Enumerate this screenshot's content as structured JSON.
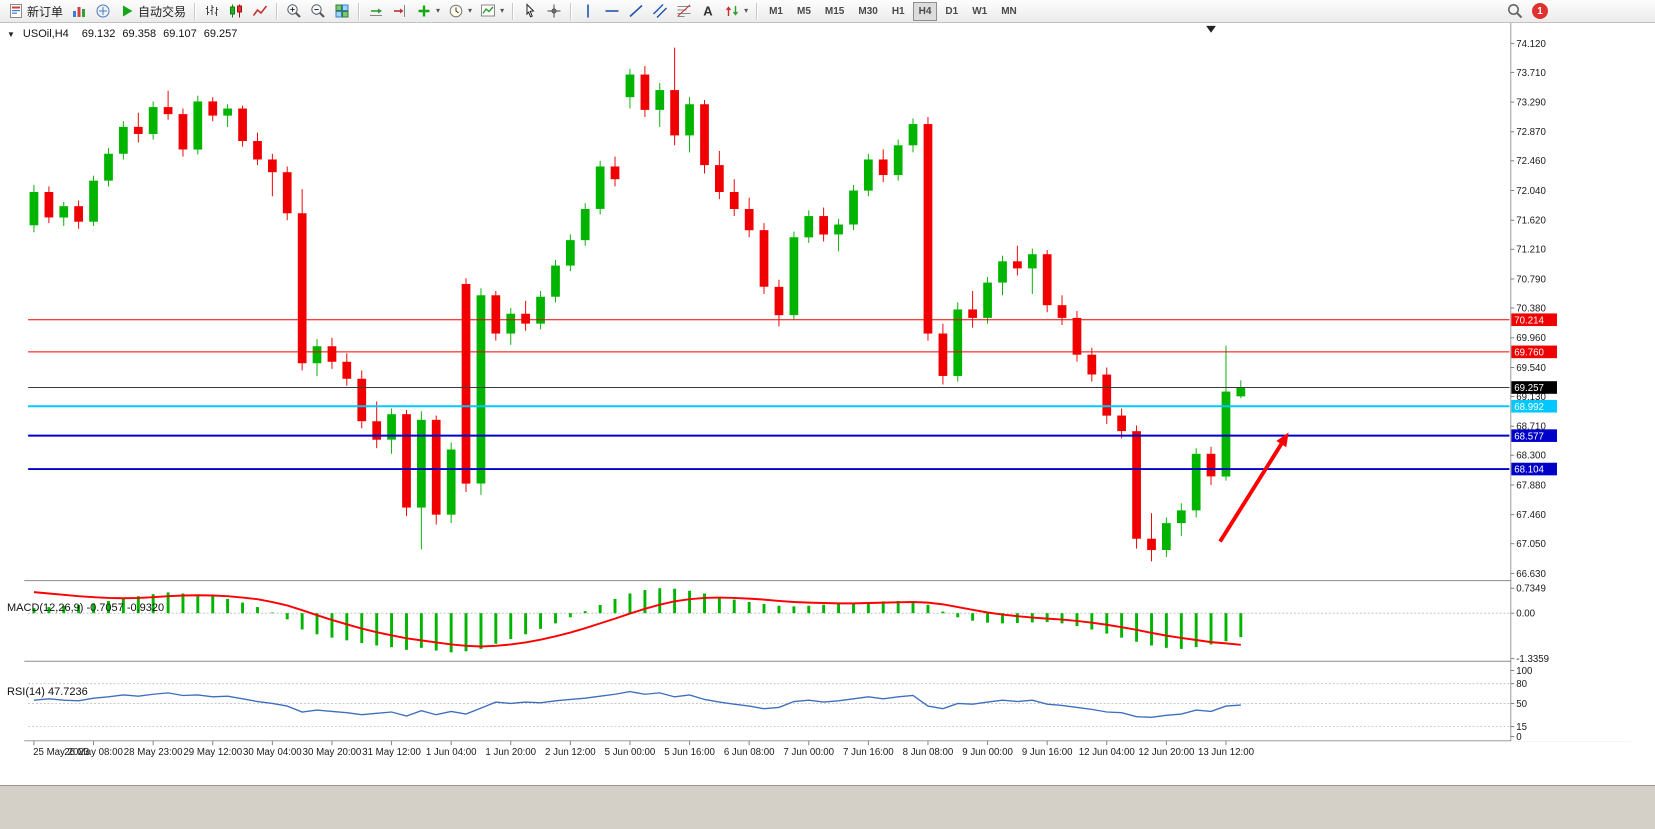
{
  "toolbar": {
    "new_order_label": "新订单",
    "autotrading_label": "自动交易",
    "timeframes": [
      "M1",
      "M5",
      "M15",
      "M30",
      "H1",
      "H4",
      "D1",
      "W1",
      "MN"
    ],
    "active_timeframe": "H4",
    "notification_badge": "1"
  },
  "chart_header": {
    "symbol": "USOil,H4",
    "open": "69.132",
    "high": "69.358",
    "low": "69.107",
    "close": "69.257"
  },
  "indicator_headers": {
    "macd": "MACD(12,26,9) -0.7057 -0.9320",
    "rsi": "RSI(14) 47.7236"
  },
  "chart_data": [
    {
      "type": "candlestick",
      "symbol": "USOil",
      "timeframe": "H4",
      "ohlc_readout": [
        69.132,
        69.358,
        69.107,
        69.257
      ],
      "colors": {
        "up": "#00B400",
        "down": "#F00000"
      },
      "y_ticks": [
        "74.120",
        "73.710",
        "73.290",
        "72.870",
        "72.460",
        "72.040",
        "71.620",
        "71.210",
        "70.790",
        "70.380",
        "69.960",
        "69.540",
        "69.130",
        "68.710",
        "68.300",
        "67.880",
        "67.460",
        "67.050",
        "66.630"
      ],
      "x_labels": [
        "25 May 2023",
        "26 May 08:00",
        "28 May 23:00",
        "29 May 12:00",
        "30 May 04:00",
        "30 May 20:00",
        "31 May 12:00",
        "1 Jun 04:00",
        "1 Jun 20:00",
        "2 Jun 12:00",
        "5 Jun 00:00",
        "5 Jun 16:00",
        "6 Jun 08:00",
        "7 Jun 00:00",
        "7 Jun 16:00",
        "8 Jun 08:00",
        "9 Jun 00:00",
        "9 Jun 16:00",
        "12 Jun 04:00",
        "12 Jun 20:00",
        "13 Jun 12:00"
      ],
      "x_label_step": 4,
      "candles": [
        [
          71.55,
          72.12,
          71.45,
          72.02
        ],
        [
          72.02,
          72.1,
          71.58,
          71.66
        ],
        [
          71.66,
          71.88,
          71.54,
          71.82
        ],
        [
          71.82,
          71.9,
          71.5,
          71.6
        ],
        [
          71.6,
          72.25,
          71.54,
          72.18
        ],
        [
          72.18,
          72.64,
          72.1,
          72.56
        ],
        [
          72.56,
          73.02,
          72.48,
          72.94
        ],
        [
          72.94,
          73.14,
          72.72,
          72.84
        ],
        [
          72.84,
          73.3,
          72.76,
          73.22
        ],
        [
          73.22,
          73.45,
          73.04,
          73.12
        ],
        [
          73.12,
          73.2,
          72.52,
          72.62
        ],
        [
          72.62,
          73.38,
          72.55,
          73.3
        ],
        [
          73.3,
          73.36,
          73.02,
          73.1
        ],
        [
          73.1,
          73.26,
          72.94,
          73.2
        ],
        [
          73.2,
          73.24,
          72.66,
          72.74
        ],
        [
          72.74,
          72.86,
          72.4,
          72.48
        ],
        [
          72.48,
          72.56,
          71.96,
          72.3
        ],
        [
          72.3,
          72.38,
          71.62,
          71.72
        ],
        [
          71.72,
          72.06,
          69.5,
          69.6
        ],
        [
          69.6,
          69.94,
          69.42,
          69.84
        ],
        [
          69.84,
          69.96,
          69.52,
          69.62
        ],
        [
          69.62,
          69.74,
          69.28,
          69.38
        ],
        [
          69.38,
          69.5,
          68.68,
          68.78
        ],
        [
          68.78,
          69.06,
          68.4,
          68.52
        ],
        [
          68.52,
          68.96,
          68.32,
          68.88
        ],
        [
          68.88,
          68.94,
          67.44,
          67.56
        ],
        [
          67.56,
          68.92,
          66.97,
          68.8
        ],
        [
          68.8,
          68.86,
          67.32,
          67.46
        ],
        [
          67.46,
          68.48,
          67.34,
          68.38
        ],
        [
          70.72,
          70.8,
          67.78,
          67.9
        ],
        [
          67.9,
          70.66,
          67.74,
          70.56
        ],
        [
          70.56,
          70.62,
          69.92,
          70.02
        ],
        [
          70.02,
          70.38,
          69.86,
          70.3
        ],
        [
          70.3,
          70.48,
          70.06,
          70.16
        ],
        [
          70.16,
          70.62,
          70.08,
          70.54
        ],
        [
          70.54,
          71.06,
          70.46,
          70.98
        ],
        [
          70.98,
          71.42,
          70.9,
          71.34
        ],
        [
          71.34,
          71.86,
          71.26,
          71.78
        ],
        [
          71.78,
          72.46,
          71.7,
          72.38
        ],
        [
          72.38,
          72.52,
          72.1,
          72.2
        ],
        [
          73.36,
          73.76,
          73.2,
          73.68
        ],
        [
          73.68,
          73.8,
          73.08,
          73.18
        ],
        [
          73.18,
          73.56,
          72.94,
          73.46
        ],
        [
          73.46,
          74.06,
          72.68,
          72.82
        ],
        [
          72.82,
          73.36,
          72.58,
          73.26
        ],
        [
          73.26,
          73.32,
          72.28,
          72.4
        ],
        [
          72.4,
          72.6,
          71.92,
          72.02
        ],
        [
          72.02,
          72.2,
          71.68,
          71.78
        ],
        [
          71.78,
          71.94,
          71.38,
          71.48
        ],
        [
          71.48,
          71.58,
          70.58,
          70.68
        ],
        [
          70.68,
          70.78,
          70.12,
          70.28
        ],
        [
          70.28,
          71.46,
          70.22,
          71.38
        ],
        [
          71.38,
          71.76,
          71.3,
          71.68
        ],
        [
          71.68,
          71.8,
          71.32,
          71.42
        ],
        [
          71.42,
          71.64,
          71.18,
          71.56
        ],
        [
          71.56,
          72.12,
          71.48,
          72.04
        ],
        [
          72.04,
          72.56,
          71.96,
          72.48
        ],
        [
          72.48,
          72.62,
          72.16,
          72.26
        ],
        [
          72.26,
          72.76,
          72.18,
          72.68
        ],
        [
          72.68,
          73.06,
          72.58,
          72.98
        ],
        [
          72.98,
          73.08,
          69.92,
          70.02
        ],
        [
          70.02,
          70.16,
          69.3,
          69.42
        ],
        [
          69.42,
          70.46,
          69.34,
          70.36
        ],
        [
          70.36,
          70.62,
          70.1,
          70.24
        ],
        [
          70.24,
          70.82,
          70.16,
          70.74
        ],
        [
          70.74,
          71.12,
          70.56,
          71.04
        ],
        [
          71.04,
          71.26,
          70.84,
          70.94
        ],
        [
          70.94,
          71.22,
          70.58,
          71.14
        ],
        [
          71.14,
          71.2,
          70.32,
          70.42
        ],
        [
          70.42,
          70.56,
          70.14,
          70.24
        ],
        [
          70.24,
          70.34,
          69.62,
          69.72
        ],
        [
          69.72,
          69.82,
          69.34,
          69.44
        ],
        [
          69.44,
          69.54,
          68.74,
          68.86
        ],
        [
          68.86,
          68.96,
          68.54,
          68.64
        ],
        [
          68.64,
          68.72,
          66.98,
          67.12
        ],
        [
          67.12,
          67.48,
          66.8,
          66.96
        ],
        [
          66.96,
          67.42,
          66.86,
          67.34
        ],
        [
          67.34,
          67.62,
          67.16,
          67.52
        ],
        [
          67.52,
          68.4,
          67.42,
          68.32
        ],
        [
          68.32,
          68.42,
          67.88,
          68.0
        ],
        [
          68.0,
          69.85,
          67.94,
          69.2
        ],
        [
          69.132,
          69.358,
          69.107,
          69.257
        ]
      ],
      "hlines": [
        {
          "price": 70.214,
          "label": "70.214",
          "color": "#F00000",
          "width": 1
        },
        {
          "price": 69.76,
          "label": "69.760",
          "color": "#F00000",
          "width": 1
        },
        {
          "price": 69.257,
          "label": "69.257",
          "color": "#3a3a3a",
          "width": 1,
          "label_bg": "#000000"
        },
        {
          "price": 68.992,
          "label": "68.992",
          "color": "#00C8FF",
          "width": 2
        },
        {
          "price": 68.577,
          "label": "68.577",
          "color": "#0000C8",
          "width": 2
        },
        {
          "price": 68.104,
          "label": "68.104",
          "color": "#0000C8",
          "width": 2
        }
      ],
      "arrow": {
        "from_index": 79.6,
        "from_price": 67.08,
        "to_index": 84.2,
        "to_price": 68.62,
        "color": "#FF0000"
      },
      "marker_index": 79
    },
    {
      "type": "bar",
      "name": "MACD",
      "label": "MACD(12,26,9) -0.7057 -0.9320",
      "y_ticks": [
        "0.7349",
        "0.00",
        "-1.3359"
      ],
      "colors": {
        "histogram": "#00B400",
        "signal": "#FF0000"
      },
      "histogram": [
        0.15,
        0.18,
        0.21,
        0.24,
        0.29,
        0.36,
        0.44,
        0.5,
        0.56,
        0.61,
        0.58,
        0.55,
        0.5,
        0.42,
        0.31,
        0.18,
        0.02,
        -0.18,
        -0.48,
        -0.62,
        -0.72,
        -0.8,
        -0.88,
        -0.95,
        -1.0,
        -1.08,
        -1.02,
        -1.1,
        -1.15,
        -1.12,
        -1.05,
        -0.9,
        -0.76,
        -0.62,
        -0.46,
        -0.3,
        -0.12,
        0.06,
        0.24,
        0.42,
        0.58,
        0.68,
        0.7349,
        0.72,
        0.66,
        0.58,
        0.48,
        0.4,
        0.33,
        0.27,
        0.22,
        0.2,
        0.22,
        0.25,
        0.28,
        0.31,
        0.33,
        0.35,
        0.36,
        0.35,
        0.25,
        0.05,
        -0.12,
        -0.22,
        -0.28,
        -0.3,
        -0.29,
        -0.27,
        -0.26,
        -0.3,
        -0.38,
        -0.48,
        -0.6,
        -0.72,
        -0.84,
        -0.95,
        -1.02,
        -1.05,
        -1.0,
        -0.92,
        -0.83,
        -0.7057
      ],
      "signal": [
        0.62,
        0.58,
        0.54,
        0.5,
        0.47,
        0.45,
        0.44,
        0.45,
        0.47,
        0.5,
        0.52,
        0.53,
        0.52,
        0.5,
        0.46,
        0.41,
        0.33,
        0.23,
        0.09,
        -0.06,
        -0.2,
        -0.33,
        -0.45,
        -0.56,
        -0.65,
        -0.74,
        -0.8,
        -0.86,
        -0.92,
        -0.96,
        -0.98,
        -0.96,
        -0.92,
        -0.86,
        -0.78,
        -0.68,
        -0.57,
        -0.44,
        -0.3,
        -0.16,
        -0.01,
        0.13,
        0.25,
        0.35,
        0.41,
        0.45,
        0.46,
        0.45,
        0.43,
        0.4,
        0.36,
        0.33,
        0.31,
        0.3,
        0.29,
        0.29,
        0.3,
        0.31,
        0.32,
        0.33,
        0.31,
        0.26,
        0.18,
        0.1,
        0.02,
        -0.04,
        -0.09,
        -0.13,
        -0.16,
        -0.19,
        -0.23,
        -0.28,
        -0.34,
        -0.41,
        -0.49,
        -0.58,
        -0.66,
        -0.73,
        -0.79,
        -0.85,
        -0.89,
        -0.932
      ]
    },
    {
      "type": "line",
      "name": "RSI",
      "label": "RSI(14) 47.7236",
      "color": "#3E6FBE",
      "y_ticks": [
        "100",
        "80",
        "50",
        "15",
        "0"
      ],
      "levels": [
        80,
        50,
        15
      ],
      "values": [
        55,
        57,
        55,
        54,
        58,
        60,
        63,
        61,
        64,
        66,
        62,
        63,
        60,
        61,
        57,
        53,
        50,
        46,
        37,
        40,
        38,
        36,
        33,
        35,
        37,
        31,
        39,
        33,
        38,
        34,
        43,
        52,
        50,
        52,
        51,
        54,
        56,
        58,
        61,
        64,
        68,
        64,
        66,
        60,
        63,
        56,
        52,
        49,
        46,
        42,
        44,
        53,
        55,
        52,
        54,
        57,
        60,
        57,
        60,
        62,
        46,
        42,
        50,
        49,
        52,
        55,
        53,
        55,
        49,
        47,
        44,
        41,
        37,
        36,
        30,
        29,
        32,
        34,
        40,
        38,
        46,
        47.72
      ]
    }
  ]
}
